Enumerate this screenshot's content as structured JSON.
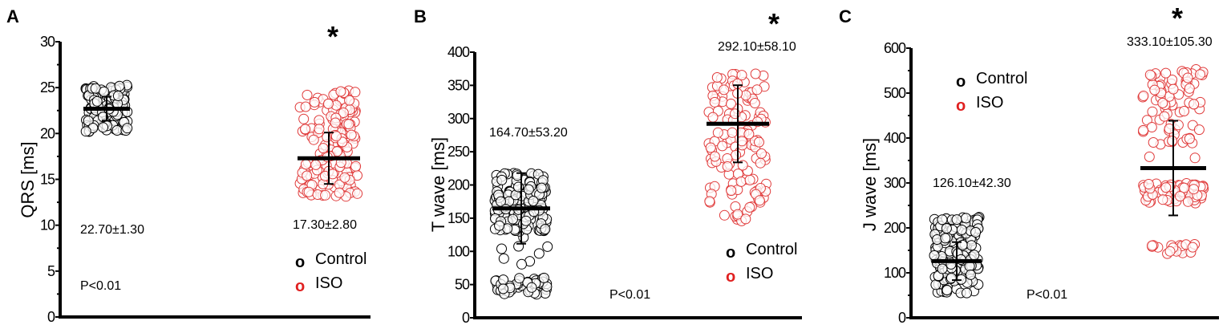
{
  "chart_data": [
    {
      "type": "scatter",
      "panel_label": "A",
      "ylabel": "QRS [ms]",
      "ylim": [
        0,
        30
      ],
      "yticks": [
        0,
        5,
        10,
        15,
        20,
        25,
        30
      ],
      "significance": "*",
      "p_value": "P<0.01",
      "legend": {
        "placement": "bottom-right",
        "entries": [
          {
            "marker": "o",
            "label": "Control",
            "color": "#000000"
          },
          {
            "marker": "o",
            "label": "ISO",
            "color": "#e02020"
          }
        ]
      },
      "series": [
        {
          "name": "Control",
          "color": "#000000",
          "mean": 22.7,
          "sd": 1.3,
          "summary": "22.70±1.30",
          "clusters": [
            {
              "min": 20.2,
              "max": 25.3,
              "n": 130
            }
          ]
        },
        {
          "name": "ISO",
          "color": "#e03a3a",
          "mean": 17.3,
          "sd": 2.8,
          "summary": "17.30±2.80",
          "clusters": [
            {
              "min": 13.0,
              "max": 24.8,
              "n": 160
            }
          ]
        }
      ]
    },
    {
      "type": "scatter",
      "panel_label": "B",
      "ylabel": "T wave [ms]",
      "ylim": [
        0,
        400
      ],
      "yticks": [
        0,
        50,
        100,
        150,
        200,
        250,
        300,
        350,
        400
      ],
      "significance": "*",
      "p_value": "P<0.01",
      "legend": {
        "placement": "bottom-right",
        "entries": [
          {
            "marker": "o",
            "label": "Control",
            "color": "#000000"
          },
          {
            "marker": "o",
            "label": "ISO",
            "color": "#e02020"
          }
        ]
      },
      "series": [
        {
          "name": "Control",
          "color": "#000000",
          "mean": 164.7,
          "sd": 53.2,
          "summary": "164.70±53.20",
          "clusters": [
            {
              "min": 35,
              "max": 60,
              "n": 45
            },
            {
              "min": 80,
              "max": 130,
              "n": 8
            },
            {
              "min": 130,
              "max": 220,
              "n": 160
            }
          ]
        },
        {
          "name": "ISO",
          "color": "#e03a3a",
          "mean": 292.1,
          "sd": 58.1,
          "summary": "292.10±58.10",
          "clusters": [
            {
              "min": 145,
              "max": 370,
              "n": 130
            }
          ]
        }
      ]
    },
    {
      "type": "scatter",
      "panel_label": "C",
      "ylabel": "J wave [ms]",
      "ylim": [
        0,
        600
      ],
      "yticks": [
        0,
        100,
        200,
        300,
        400,
        500,
        600
      ],
      "significance": "*",
      "p_value": "P<0.01",
      "legend": {
        "placement": "top-left",
        "entries": [
          {
            "marker": "o",
            "label": "Control",
            "color": "#000000"
          },
          {
            "marker": "o",
            "label": "ISO",
            "color": "#e02020"
          }
        ]
      },
      "series": [
        {
          "name": "Control",
          "color": "#000000",
          "mean": 126.1,
          "sd": 42.3,
          "summary": "126.10±42.30",
          "clusters": [
            {
              "min": 55,
              "max": 225,
              "n": 170
            }
          ]
        },
        {
          "name": "ISO",
          "color": "#e03a3a",
          "mean": 333.1,
          "sd": 105.3,
          "summary": "333.10±105.30",
          "clusters": [
            {
              "min": 140,
              "max": 165,
              "n": 18
            },
            {
              "min": 255,
              "max": 300,
              "n": 70
            },
            {
              "min": 355,
              "max": 365,
              "n": 2
            },
            {
              "min": 385,
              "max": 560,
              "n": 75
            }
          ]
        }
      ]
    }
  ]
}
